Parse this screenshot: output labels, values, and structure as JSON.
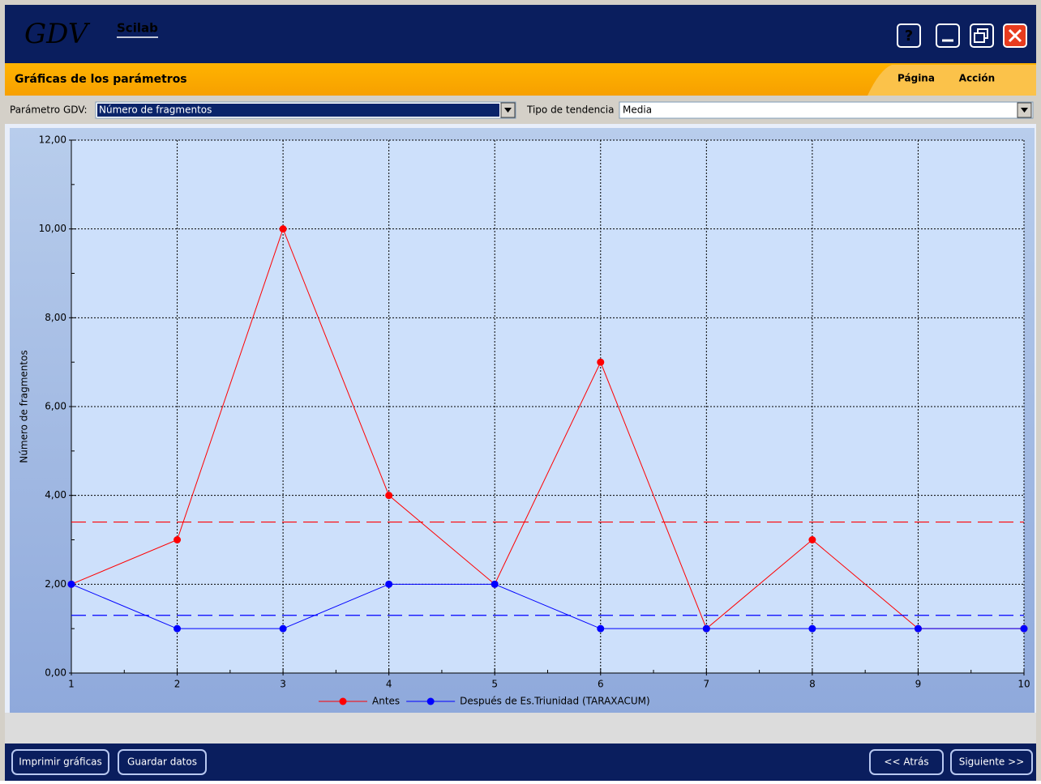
{
  "header": {
    "logo": "GDV",
    "brand": "Scilab"
  },
  "toolbar": {
    "title": "Gráficas de los parámetros",
    "menu": [
      "Página",
      "Acción"
    ]
  },
  "controls": {
    "parameter_label": "Parámetro GDV:",
    "parameter_value": "Número de fragmentos",
    "trend_label": "Tipo de tendencia",
    "trend_value": "Media"
  },
  "chart_data": {
    "type": "line",
    "y_label": "Número de fragmentos",
    "x": [
      1,
      2,
      3,
      4,
      5,
      6,
      7,
      8,
      9,
      10
    ],
    "xlim": [
      1,
      10
    ],
    "xticks": [
      1,
      2,
      3,
      4,
      5,
      6,
      7,
      8,
      9,
      10
    ],
    "ylim": [
      0,
      12
    ],
    "yticks": [
      {
        "value": 0,
        "label": "0,00"
      },
      {
        "value": 2,
        "label": "2,00"
      },
      {
        "value": 4,
        "label": "4,00"
      },
      {
        "value": 6,
        "label": "6,00"
      },
      {
        "value": 8,
        "label": "8,00"
      },
      {
        "value": 10,
        "label": "10,00"
      },
      {
        "value": 12,
        "label": "12,00"
      }
    ],
    "grid": true,
    "series": [
      {
        "name": "Antes",
        "color": "#ff0000",
        "values": [
          2,
          3,
          10,
          4,
          2,
          7,
          1,
          3,
          1,
          1
        ],
        "mean": 3.4
      },
      {
        "name": "Después de Es.Triunidad (TARAXACUM)",
        "color": "#0000ff",
        "values": [
          2,
          1,
          1,
          2,
          2,
          1,
          1,
          1,
          1,
          1
        ],
        "mean": 1.3
      }
    ]
  },
  "footer": {
    "buttons": [
      "Imprimir gráficas",
      "Guardar datos",
      "<< Atrás",
      "Siguiente >>"
    ]
  }
}
